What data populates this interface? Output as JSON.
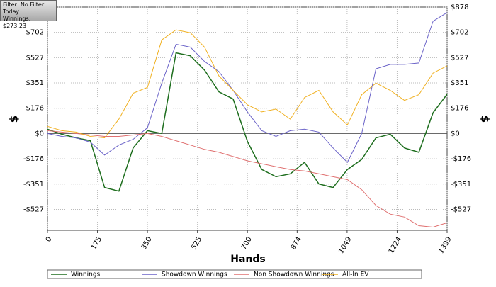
{
  "info": {
    "filter": "Filter: No Filter",
    "period": "Today",
    "winnings": "Winnings: $273.23"
  },
  "chart_data": {
    "type": "line",
    "x_label": "Hands",
    "y_label": "$",
    "y2_label": "$",
    "x": [
      0,
      50,
      100,
      150,
      200,
      250,
      300,
      350,
      400,
      450,
      500,
      550,
      600,
      650,
      700,
      750,
      800,
      850,
      900,
      950,
      1000,
      1050,
      1100,
      1150,
      1200,
      1250,
      1300,
      1350,
      1399
    ],
    "xlim": [
      0,
      1399
    ],
    "xticks": [
      0,
      175,
      350,
      525,
      700,
      874,
      1049,
      1224,
      1399
    ],
    "ylim": [
      -672,
      878
    ],
    "yticks": [
      {
        "value": -526.8,
        "label": "-$527"
      },
      {
        "value": -351.2,
        "label": "-$351"
      },
      {
        "value": -175.6,
        "label": "-$176"
      },
      {
        "value": 0,
        "label": "$0"
      },
      {
        "value": 175.6,
        "label": "$176"
      },
      {
        "value": 351.2,
        "label": "$351"
      },
      {
        "value": 526.8,
        "label": "$527"
      },
      {
        "value": 702.4,
        "label": "$702"
      },
      {
        "value": 878,
        "label": "$878"
      }
    ],
    "grid": true,
    "series": [
      {
        "name": "Winnings",
        "color": "#1e6e1e",
        "values": [
          30,
          -5,
          -30,
          -50,
          -375,
          -400,
          -100,
          20,
          0,
          560,
          540,
          440,
          290,
          240,
          -55,
          -250,
          -300,
          -280,
          -200,
          -350,
          -375,
          -250,
          -180,
          -30,
          -5,
          -100,
          -130,
          145,
          273
        ]
      },
      {
        "name": "Showdown Winnings",
        "color": "#6a62c8",
        "values": [
          0,
          -20,
          -30,
          -60,
          -150,
          -80,
          -40,
          40,
          350,
          620,
          600,
          500,
          430,
          300,
          150,
          20,
          -20,
          20,
          30,
          10,
          -100,
          -200,
          0,
          450,
          480,
          480,
          490,
          780,
          840
        ]
      },
      {
        "name": "Non Showdown Winnings",
        "color": "#e07070",
        "values": [
          20,
          10,
          0,
          -10,
          -20,
          -20,
          -10,
          0,
          -20,
          -50,
          -80,
          -110,
          -130,
          -160,
          -190,
          -210,
          -230,
          -250,
          -260,
          -280,
          -300,
          -320,
          -390,
          -500,
          -560,
          -580,
          -640,
          -650,
          -620
        ]
      },
      {
        "name": "All-In EV",
        "color": "#f0b020",
        "values": [
          50,
          20,
          10,
          -20,
          -30,
          100,
          280,
          320,
          650,
          720,
          700,
          600,
          400,
          300,
          200,
          150,
          170,
          100,
          250,
          300,
          150,
          60,
          270,
          350,
          300,
          230,
          270,
          420,
          470
        ]
      }
    ]
  }
}
